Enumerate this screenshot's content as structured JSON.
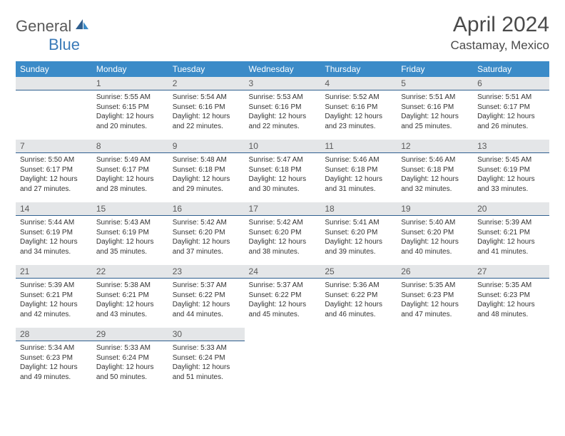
{
  "brand": {
    "part1": "General",
    "part2": "Blue"
  },
  "title": "April 2024",
  "location": "Castamay, Mexico",
  "colors": {
    "header_bg": "#3b8bc8",
    "header_text": "#ffffff",
    "daynum_bg": "#e4e6e8",
    "daynum_border": "#2f5f8f",
    "body_text": "#333333",
    "logo_gray": "#5a5a5a",
    "logo_blue": "#3a7ab8"
  },
  "weekdays": [
    "Sunday",
    "Monday",
    "Tuesday",
    "Wednesday",
    "Thursday",
    "Friday",
    "Saturday"
  ],
  "start_offset": 1,
  "days": [
    {
      "n": 1,
      "sr": "5:55 AM",
      "ss": "6:15 PM",
      "dl": "12 hours and 20 minutes."
    },
    {
      "n": 2,
      "sr": "5:54 AM",
      "ss": "6:16 PM",
      "dl": "12 hours and 22 minutes."
    },
    {
      "n": 3,
      "sr": "5:53 AM",
      "ss": "6:16 PM",
      "dl": "12 hours and 22 minutes."
    },
    {
      "n": 4,
      "sr": "5:52 AM",
      "ss": "6:16 PM",
      "dl": "12 hours and 23 minutes."
    },
    {
      "n": 5,
      "sr": "5:51 AM",
      "ss": "6:16 PM",
      "dl": "12 hours and 25 minutes."
    },
    {
      "n": 6,
      "sr": "5:51 AM",
      "ss": "6:17 PM",
      "dl": "12 hours and 26 minutes."
    },
    {
      "n": 7,
      "sr": "5:50 AM",
      "ss": "6:17 PM",
      "dl": "12 hours and 27 minutes."
    },
    {
      "n": 8,
      "sr": "5:49 AM",
      "ss": "6:17 PM",
      "dl": "12 hours and 28 minutes."
    },
    {
      "n": 9,
      "sr": "5:48 AM",
      "ss": "6:18 PM",
      "dl": "12 hours and 29 minutes."
    },
    {
      "n": 10,
      "sr": "5:47 AM",
      "ss": "6:18 PM",
      "dl": "12 hours and 30 minutes."
    },
    {
      "n": 11,
      "sr": "5:46 AM",
      "ss": "6:18 PM",
      "dl": "12 hours and 31 minutes."
    },
    {
      "n": 12,
      "sr": "5:46 AM",
      "ss": "6:18 PM",
      "dl": "12 hours and 32 minutes."
    },
    {
      "n": 13,
      "sr": "5:45 AM",
      "ss": "6:19 PM",
      "dl": "12 hours and 33 minutes."
    },
    {
      "n": 14,
      "sr": "5:44 AM",
      "ss": "6:19 PM",
      "dl": "12 hours and 34 minutes."
    },
    {
      "n": 15,
      "sr": "5:43 AM",
      "ss": "6:19 PM",
      "dl": "12 hours and 35 minutes."
    },
    {
      "n": 16,
      "sr": "5:42 AM",
      "ss": "6:20 PM",
      "dl": "12 hours and 37 minutes."
    },
    {
      "n": 17,
      "sr": "5:42 AM",
      "ss": "6:20 PM",
      "dl": "12 hours and 38 minutes."
    },
    {
      "n": 18,
      "sr": "5:41 AM",
      "ss": "6:20 PM",
      "dl": "12 hours and 39 minutes."
    },
    {
      "n": 19,
      "sr": "5:40 AM",
      "ss": "6:20 PM",
      "dl": "12 hours and 40 minutes."
    },
    {
      "n": 20,
      "sr": "5:39 AM",
      "ss": "6:21 PM",
      "dl": "12 hours and 41 minutes."
    },
    {
      "n": 21,
      "sr": "5:39 AM",
      "ss": "6:21 PM",
      "dl": "12 hours and 42 minutes."
    },
    {
      "n": 22,
      "sr": "5:38 AM",
      "ss": "6:21 PM",
      "dl": "12 hours and 43 minutes."
    },
    {
      "n": 23,
      "sr": "5:37 AM",
      "ss": "6:22 PM",
      "dl": "12 hours and 44 minutes."
    },
    {
      "n": 24,
      "sr": "5:37 AM",
      "ss": "6:22 PM",
      "dl": "12 hours and 45 minutes."
    },
    {
      "n": 25,
      "sr": "5:36 AM",
      "ss": "6:22 PM",
      "dl": "12 hours and 46 minutes."
    },
    {
      "n": 26,
      "sr": "5:35 AM",
      "ss": "6:23 PM",
      "dl": "12 hours and 47 minutes."
    },
    {
      "n": 27,
      "sr": "5:35 AM",
      "ss": "6:23 PM",
      "dl": "12 hours and 48 minutes."
    },
    {
      "n": 28,
      "sr": "5:34 AM",
      "ss": "6:23 PM",
      "dl": "12 hours and 49 minutes."
    },
    {
      "n": 29,
      "sr": "5:33 AM",
      "ss": "6:24 PM",
      "dl": "12 hours and 50 minutes."
    },
    {
      "n": 30,
      "sr": "5:33 AM",
      "ss": "6:24 PM",
      "dl": "12 hours and 51 minutes."
    }
  ],
  "labels": {
    "sunrise": "Sunrise:",
    "sunset": "Sunset:",
    "daylight": "Daylight:"
  }
}
